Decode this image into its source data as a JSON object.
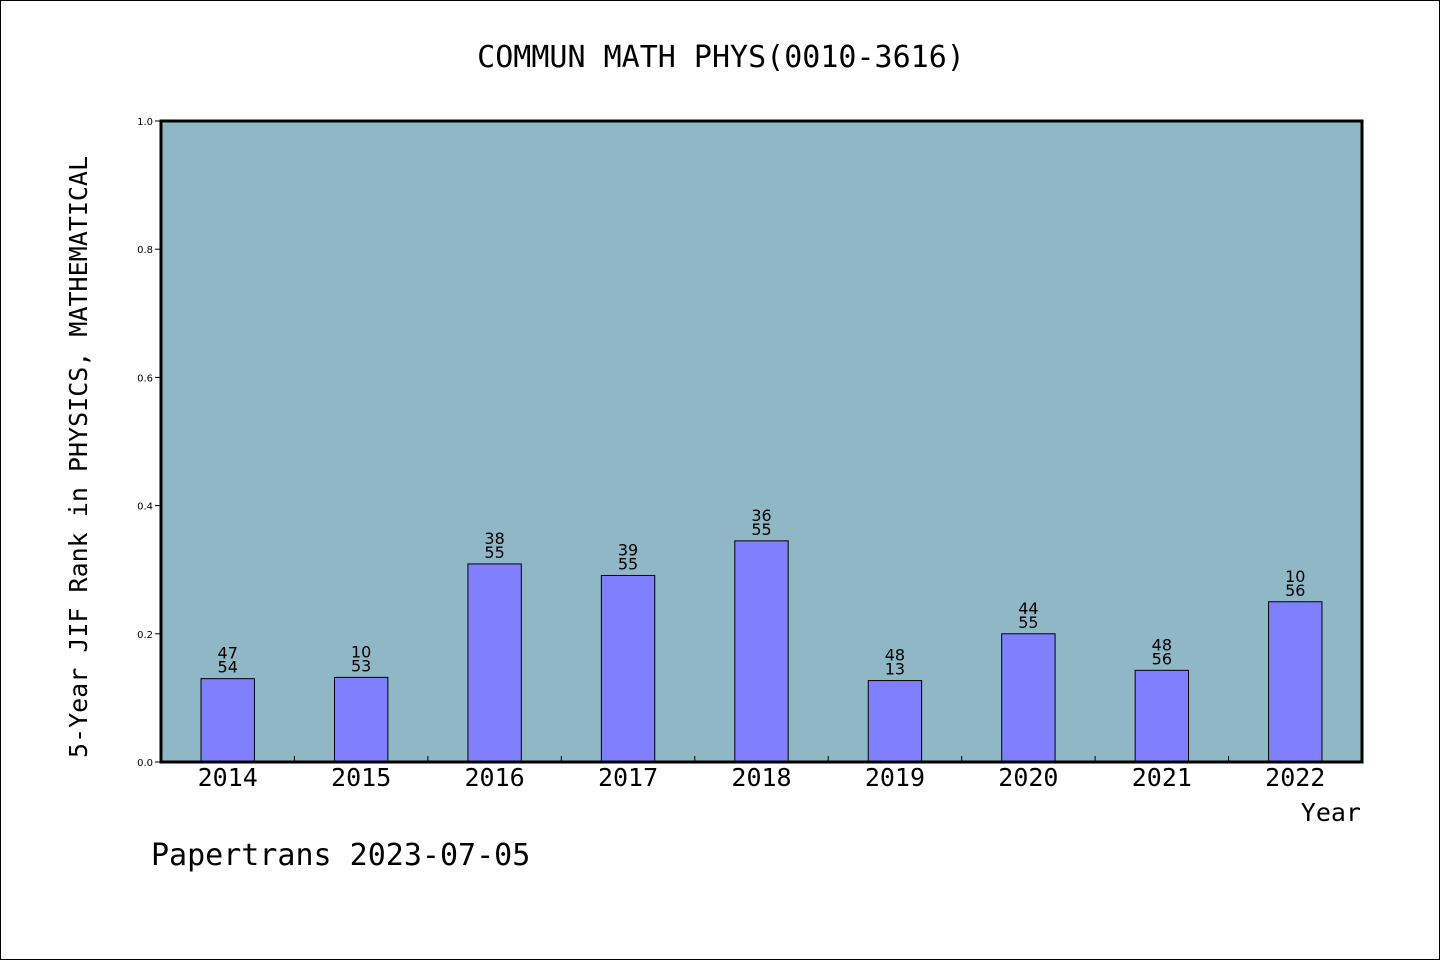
{
  "chart_data": {
    "type": "bar",
    "title": "COMMUN MATH PHYS(0010-3616)",
    "xlabel": "Year",
    "ylabel": "5-Year JIF Rank in PHYSICS, MATHEMATICAL",
    "ylim": [
      0,
      1.0
    ],
    "yticks": [
      "0.0",
      "0.2",
      "0.4",
      "0.6",
      "0.8",
      "1.0"
    ],
    "grid": false,
    "categories": [
      "2014",
      "2015",
      "2016",
      "2017",
      "2018",
      "2019",
      "2020",
      "2021",
      "2022"
    ],
    "values": [
      0.13,
      0.132,
      0.309,
      0.291,
      0.345,
      0.127,
      0.2,
      0.143,
      0.25
    ],
    "bar_labels_top": [
      "47",
      "10",
      "38",
      "39",
      "36",
      "48",
      "44",
      "48",
      "10"
    ],
    "bar_labels_bottom": [
      "54",
      "53",
      "55",
      "55",
      "55",
      "13",
      "55",
      "56",
      "56"
    ],
    "colors": {
      "plot_background": "#8fb7c5",
      "bar_fill": "#8080ff",
      "bar_stroke": "#000000"
    }
  },
  "footer": {
    "text": "Papertrans 2023-07-05"
  }
}
